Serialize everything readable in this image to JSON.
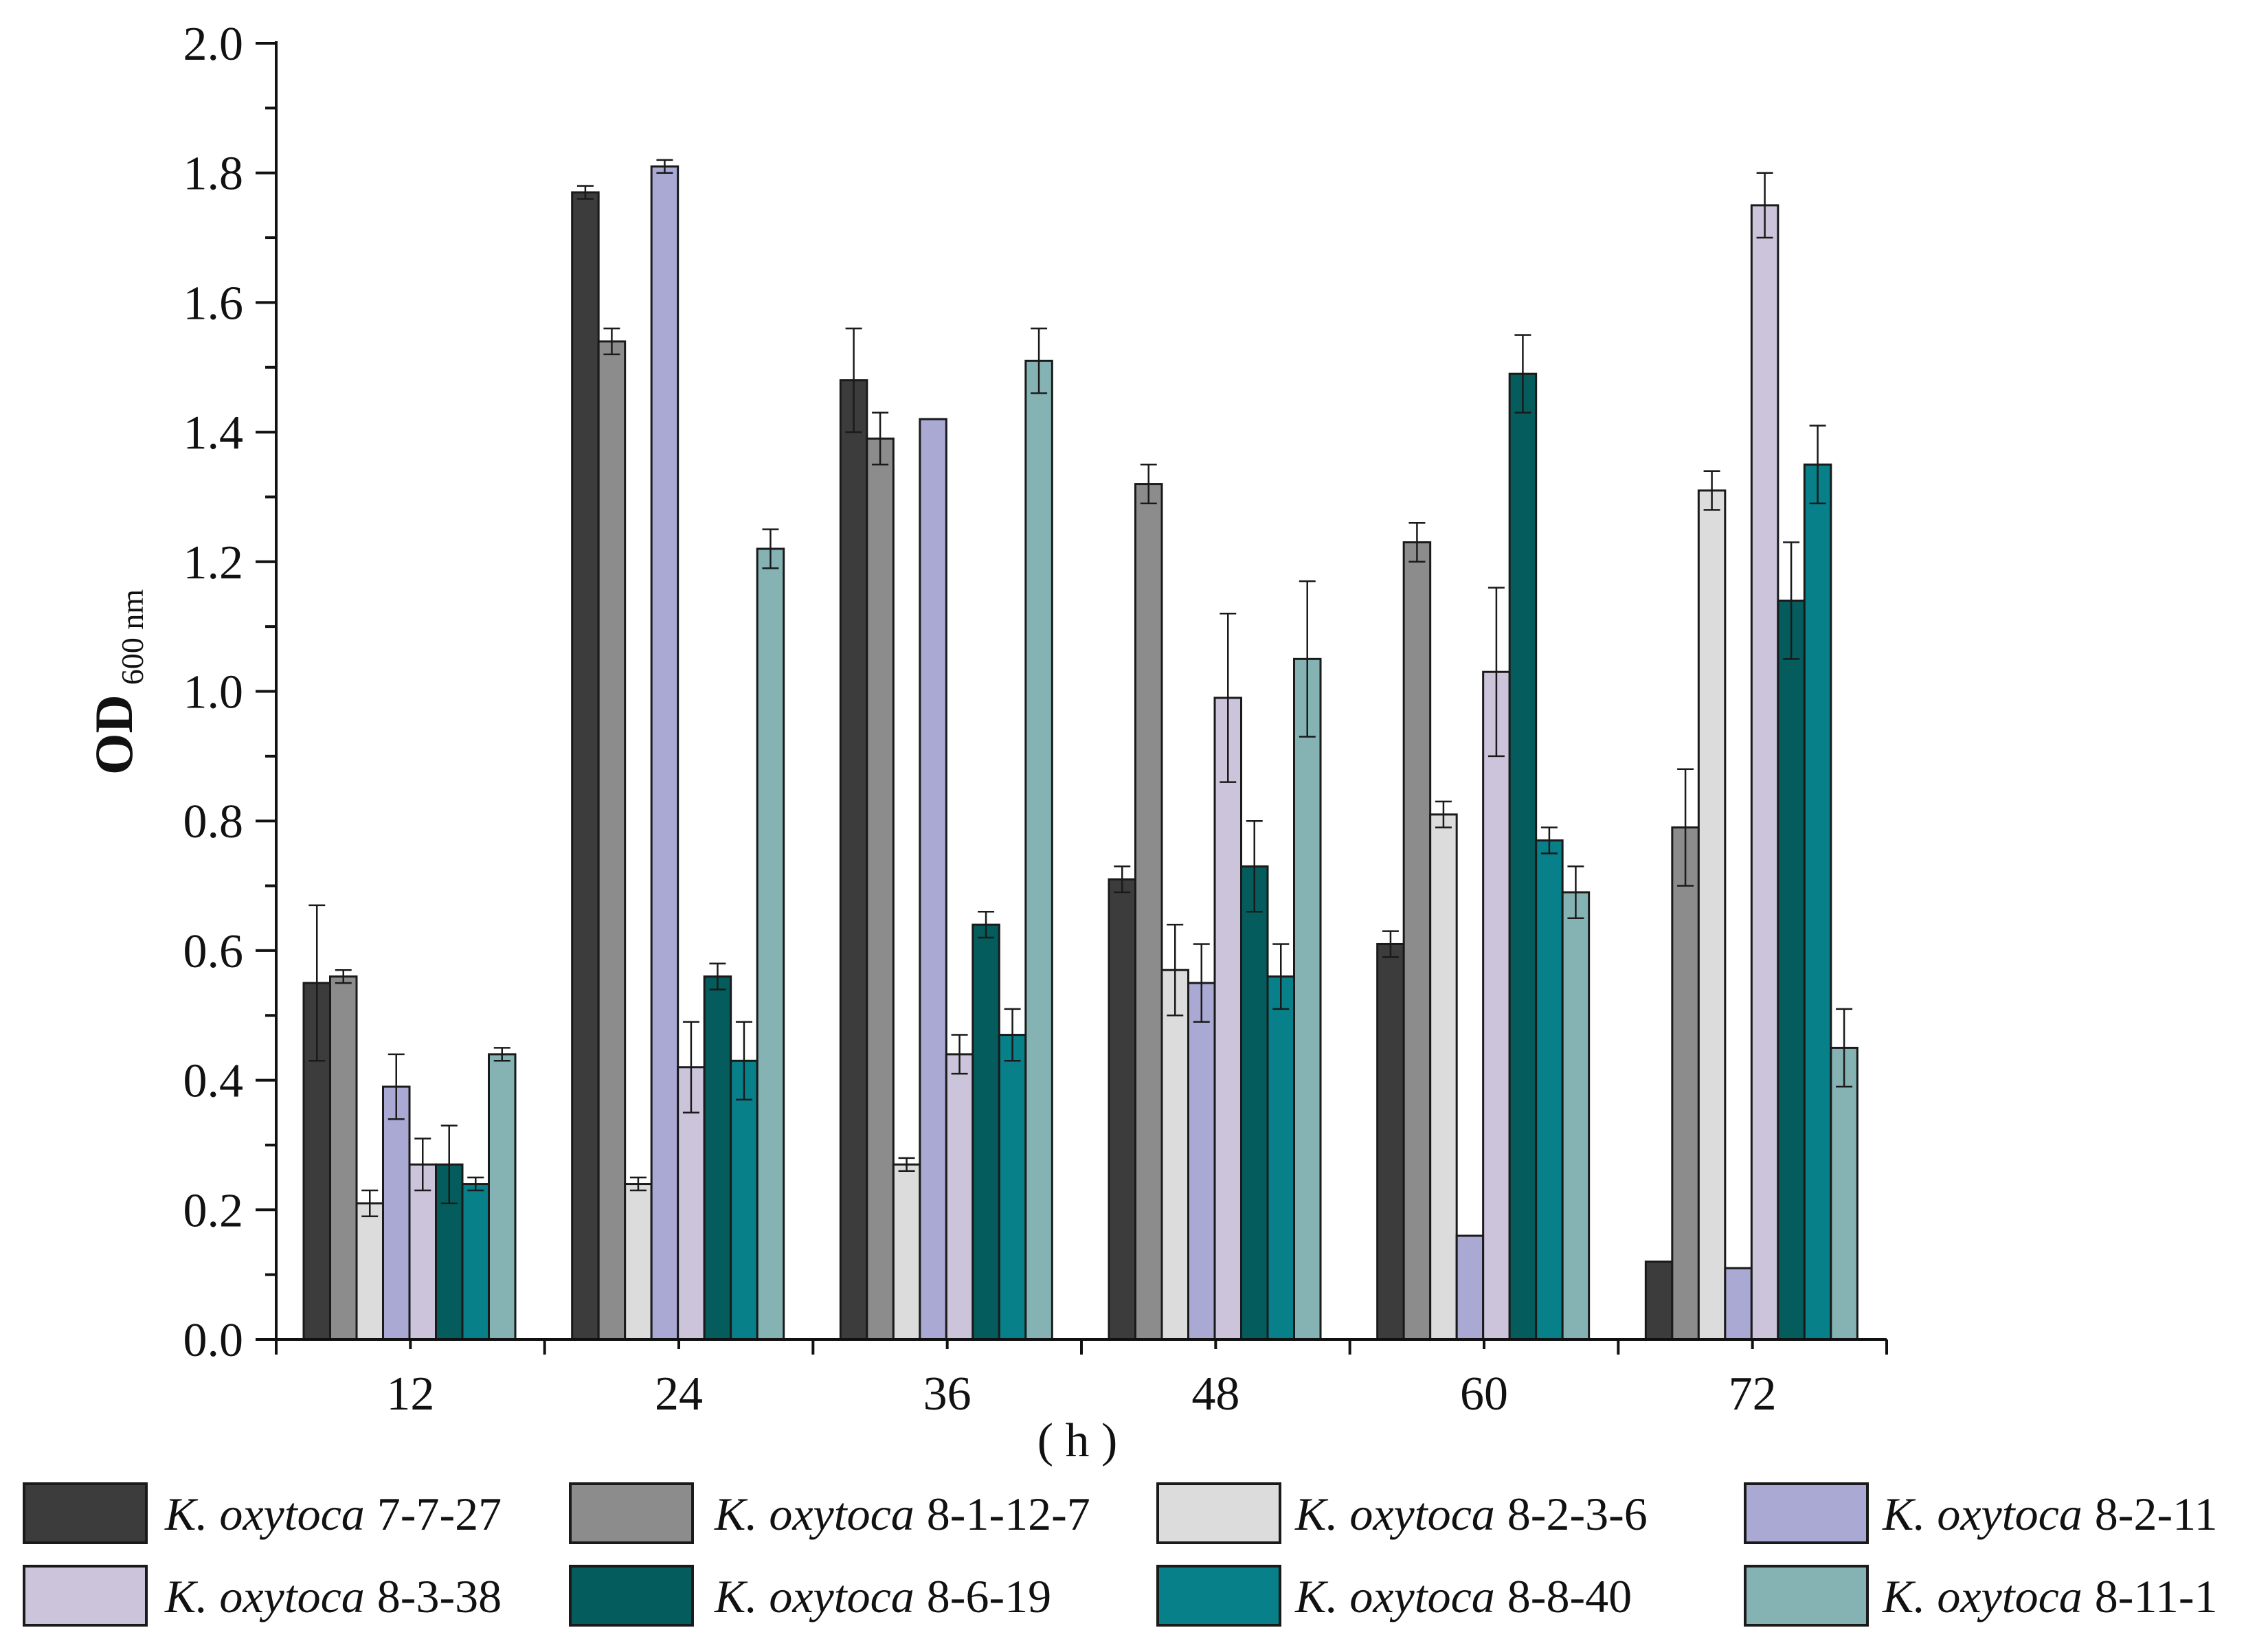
{
  "chart_data": {
    "type": "bar",
    "title": "",
    "xlabel": "( h )",
    "ylabel": {
      "main": "OD",
      "sub": "600 nm"
    },
    "categories": [
      "12",
      "24",
      "36",
      "48",
      "60",
      "72"
    ],
    "ylim": [
      0,
      2.0
    ],
    "yticks": [
      "0.0",
      "0.2",
      "0.4",
      "0.6",
      "0.8",
      "1.0",
      "1.2",
      "1.4",
      "1.6",
      "1.8",
      "2.0"
    ],
    "grid": false,
    "legend_position": "bottom",
    "series": [
      {
        "name": "8-2-11",
        "prefix": "K. oxytoca",
        "strain": "8-2-11",
        "color": "#a9a9d4",
        "values": [
          0.39,
          1.81,
          1.42,
          0.55,
          0.16,
          0.11
        ],
        "errors": [
          0.05,
          0.01,
          0.0,
          0.06,
          0.0,
          0.0
        ]
      },
      {
        "name": "8-1-12-7",
        "prefix": "K. oxytoca",
        "strain": "8-1-12-7",
        "color": "#8c8c8c",
        "values": [
          0.56,
          1.54,
          1.39,
          1.32,
          1.23,
          0.79
        ],
        "errors": [
          0.01,
          0.02,
          0.04,
          0.03,
          0.03,
          0.09
        ]
      },
      {
        "name": "8-2-3-6",
        "prefix": "K. oxytoca",
        "strain": "8-2-3-6",
        "color": "#dcdcdc",
        "values": [
          0.21,
          0.24,
          0.27,
          0.57,
          0.81,
          1.31
        ],
        "errors": [
          0.02,
          0.01,
          0.01,
          0.07,
          0.02,
          0.03
        ]
      },
      {
        "name": "7-7-27",
        "prefix": "K. oxytoca",
        "strain": "7-7-27",
        "color": "#3c3c3c",
        "values": [
          0.55,
          1.77,
          1.48,
          0.71,
          0.61,
          0.12
        ],
        "errors": [
          0.12,
          0.01,
          0.08,
          0.02,
          0.02,
          0.0
        ]
      },
      {
        "name": "8-3-38",
        "prefix": "K. oxytoca",
        "strain": "8-3-38",
        "color": "#cbc4da",
        "values": [
          0.27,
          0.42,
          0.44,
          0.99,
          1.03,
          1.75
        ],
        "errors": [
          0.04,
          0.07,
          0.03,
          0.13,
          0.13,
          0.05
        ]
      },
      {
        "name": "8-6-19",
        "prefix": "K. oxytoca",
        "strain": "8-6-19",
        "color": "#045c5c",
        "values": [
          0.27,
          0.56,
          0.64,
          0.73,
          1.49,
          1.14
        ],
        "errors": [
          0.06,
          0.02,
          0.02,
          0.07,
          0.06,
          0.09
        ]
      },
      {
        "name": "8-8-40",
        "prefix": "K. oxytoca",
        "strain": "8-8-40",
        "color": "#07808a",
        "values": [
          0.24,
          0.43,
          0.47,
          0.56,
          0.77,
          1.35
        ],
        "errors": [
          0.01,
          0.06,
          0.04,
          0.05,
          0.02,
          0.06
        ]
      },
      {
        "name": "8-11-1",
        "prefix": "K. oxytoca",
        "strain": "8-11-1",
        "color": "#85b3b3",
        "values": [
          0.44,
          1.22,
          1.51,
          1.05,
          0.69,
          0.45
        ],
        "errors": [
          0.01,
          0.03,
          0.05,
          0.12,
          0.04,
          0.06
        ]
      }
    ],
    "bar_order": [
      "7-7-27",
      "8-1-12-7",
      "8-2-3-6",
      "8-2-11",
      "8-3-38",
      "8-6-19",
      "8-8-40",
      "8-11-1"
    ],
    "legend_rows": [
      [
        "7-7-27",
        "8-1-12-7",
        "8-2-3-6",
        "8-2-11"
      ],
      [
        "8-3-38",
        "8-6-19",
        "8-8-40",
        "8-11-1"
      ]
    ]
  }
}
